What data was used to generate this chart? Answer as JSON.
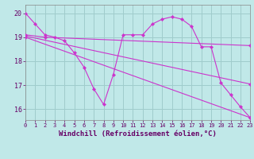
{
  "background_color": "#c0e8e8",
  "grid_color": "#a0cccc",
  "line_color": "#cc33cc",
  "xlabel": "Windchill (Refroidissement éolien,°C)",
  "ylabel_ticks": [
    16,
    17,
    18,
    19,
    20
  ],
  "xticks": [
    0,
    1,
    2,
    3,
    4,
    5,
    6,
    7,
    8,
    9,
    10,
    11,
    12,
    13,
    14,
    15,
    16,
    17,
    18,
    19,
    20,
    21,
    22,
    23
  ],
  "ylim": [
    15.55,
    20.35
  ],
  "xlim": [
    0,
    23
  ],
  "curve1_x": [
    0,
    1,
    2,
    3,
    4,
    5,
    6,
    7,
    8,
    9,
    10,
    11,
    12,
    13,
    14,
    15,
    16,
    17,
    18,
    19,
    20,
    21,
    22,
    23
  ],
  "curve1_y": [
    20.0,
    19.55,
    19.1,
    19.0,
    18.85,
    18.35,
    17.75,
    16.85,
    16.2,
    17.45,
    19.1,
    19.1,
    19.1,
    19.55,
    19.75,
    19.85,
    19.75,
    19.45,
    18.6,
    18.6,
    17.1,
    16.6,
    16.1,
    15.65
  ],
  "curve2_x": [
    0,
    2,
    23
  ],
  "curve2_y": [
    19.1,
    19.0,
    18.65
  ],
  "curve3_x": [
    0,
    23
  ],
  "curve3_y": [
    19.05,
    17.05
  ],
  "curve4_x": [
    0,
    23
  ],
  "curve4_y": [
    19.0,
    15.65
  ]
}
